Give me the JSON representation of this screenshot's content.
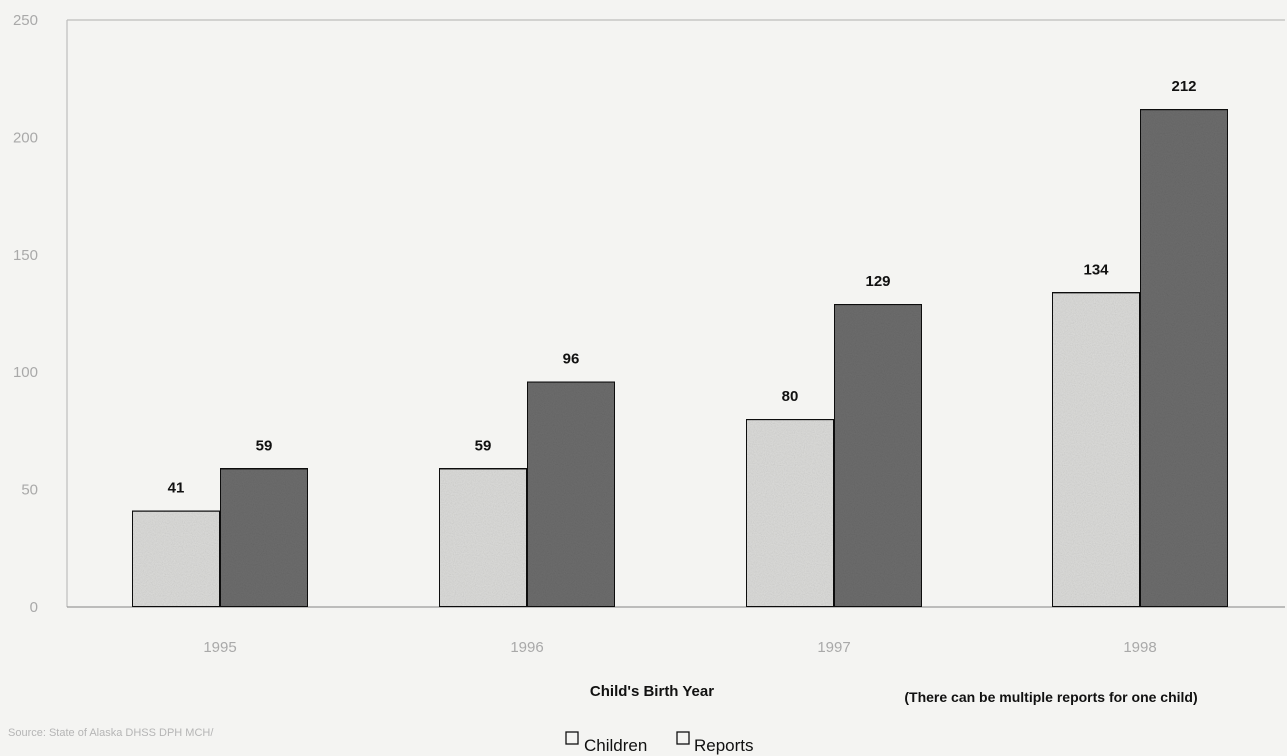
{
  "chart_data": {
    "type": "bar",
    "categories": [
      "1995",
      "1996",
      "1997",
      "1998"
    ],
    "series": [
      {
        "name": "Children",
        "values": [
          41,
          59,
          80,
          134
        ]
      },
      {
        "name": "Reports",
        "values": [
          59,
          96,
          129,
          212
        ]
      }
    ],
    "y_ticks": [
      0,
      50,
      100,
      150,
      200,
      250
    ],
    "ylim": [
      0,
      250
    ],
    "xlabel": "Child's Birth Year",
    "ylabel": "",
    "title": "",
    "note": "(There can be multiple reports for one child)",
    "source": "Source: State of Alaska DHSS DPH MCH/",
    "legend_position": "bottom-center",
    "grid": false,
    "colors": {
      "children": "#dcdcda",
      "reports": "#6d6d6d",
      "outline": "#111111"
    }
  }
}
